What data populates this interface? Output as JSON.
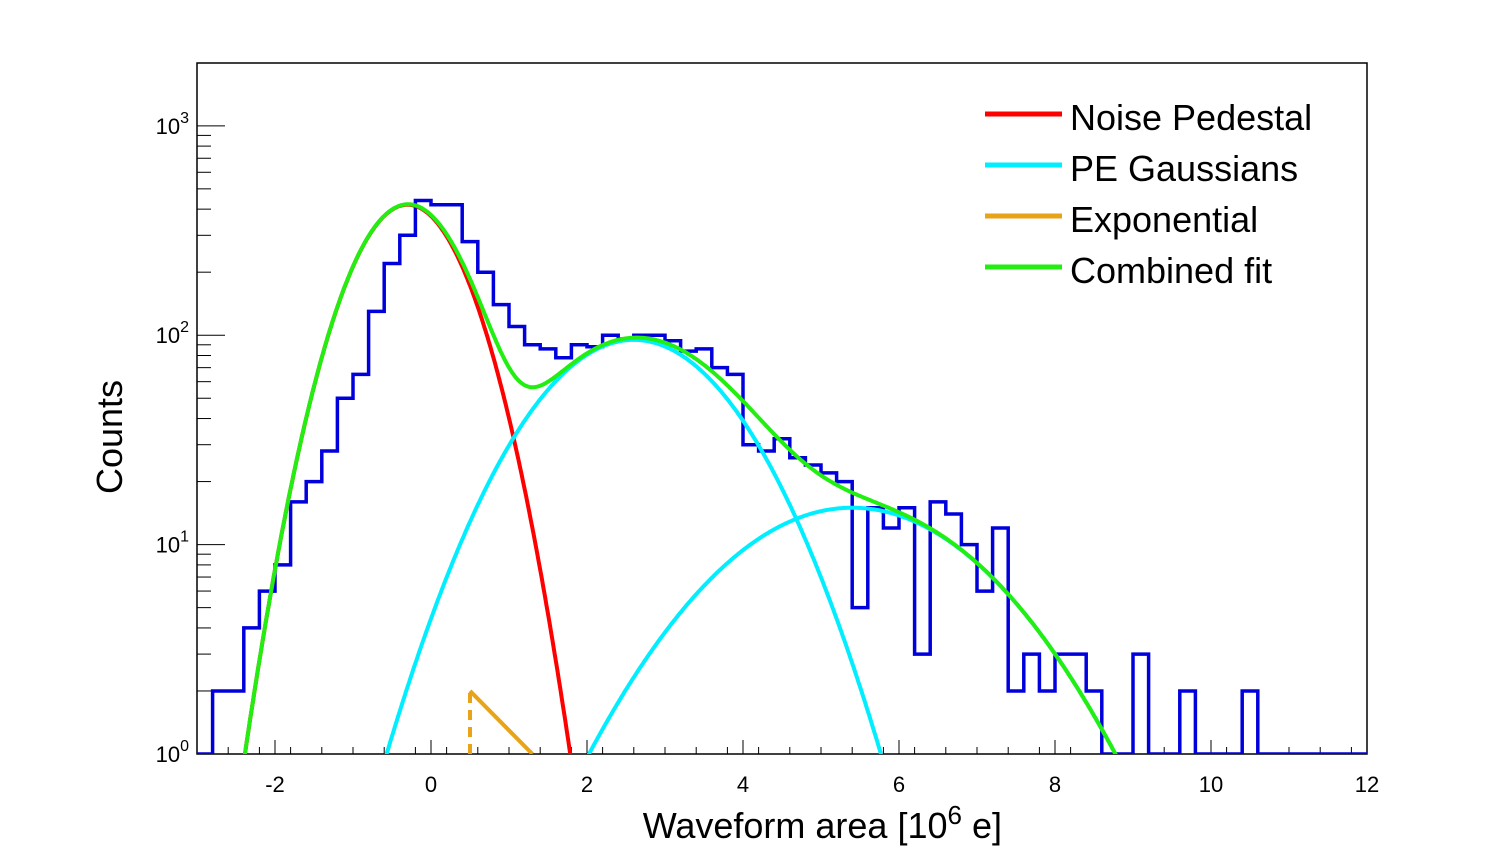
{
  "chart_data": {
    "type": "line",
    "title": "",
    "xlabel": "Waveform area [10^6 e]",
    "xlabel_parts": {
      "main": "Waveform area [10",
      "sup": "6",
      "tail": " e]"
    },
    "ylabel": "Counts",
    "xlim": [
      -3,
      12
    ],
    "ylim_log10": [
      0,
      3.3
    ],
    "y_scale": "log",
    "x_ticks": [
      -2,
      0,
      2,
      4,
      6,
      8,
      10,
      12
    ],
    "x_tick_labels": [
      "-2",
      "0",
      "2",
      "4",
      "6",
      "8",
      "10",
      "12"
    ],
    "y_ticks": [
      {
        "value": 1,
        "base": "10",
        "exp": "0"
      },
      {
        "value": 10,
        "base": "10",
        "exp": "1"
      },
      {
        "value": 100,
        "base": "10",
        "exp": "2"
      },
      {
        "value": 1000,
        "base": "10",
        "exp": "3"
      }
    ],
    "legend": {
      "placement": "top-right",
      "entries": [
        {
          "label": "Noise Pedestal",
          "color": "#ff0000"
        },
        {
          "label": "PE Gaussians",
          "color": "#00eeff"
        },
        {
          "label": "Exponential",
          "color": "#e8a317"
        },
        {
          "label": "Combined fit",
          "color": "#22ee11"
        }
      ]
    },
    "histogram": {
      "name": "Data",
      "color": "#0000dd",
      "bin_width": 0.2,
      "bins": [
        [
          -3.0,
          1
        ],
        [
          -2.8,
          2
        ],
        [
          -2.6,
          2
        ],
        [
          -2.4,
          4
        ],
        [
          -2.2,
          6
        ],
        [
          -2.0,
          8
        ],
        [
          -1.8,
          16
        ],
        [
          -1.6,
          20
        ],
        [
          -1.4,
          28
        ],
        [
          -1.2,
          50
        ],
        [
          -1.0,
          65
        ],
        [
          -0.8,
          130
        ],
        [
          -0.6,
          220
        ],
        [
          -0.4,
          300
        ],
        [
          -0.2,
          440
        ],
        [
          0.0,
          420
        ],
        [
          0.2,
          420
        ],
        [
          0.4,
          280
        ],
        [
          0.6,
          200
        ],
        [
          0.8,
          140
        ],
        [
          1.0,
          110
        ],
        [
          1.2,
          90
        ],
        [
          1.4,
          86
        ],
        [
          1.6,
          78
        ],
        [
          1.8,
          90
        ],
        [
          2.0,
          88
        ],
        [
          2.2,
          100
        ],
        [
          2.4,
          96
        ],
        [
          2.6,
          100
        ],
        [
          2.8,
          100
        ],
        [
          3.0,
          94
        ],
        [
          3.2,
          84
        ],
        [
          3.4,
          86
        ],
        [
          3.6,
          70
        ],
        [
          3.8,
          65
        ],
        [
          4.0,
          30
        ],
        [
          4.2,
          28
        ],
        [
          4.4,
          32
        ],
        [
          4.6,
          26
        ],
        [
          4.8,
          24
        ],
        [
          5.0,
          22
        ],
        [
          5.2,
          20
        ],
        [
          5.4,
          5
        ],
        [
          5.6,
          15
        ],
        [
          5.8,
          12
        ],
        [
          6.0,
          15
        ],
        [
          6.2,
          3
        ],
        [
          6.4,
          16
        ],
        [
          6.6,
          14
        ],
        [
          6.8,
          10
        ],
        [
          7.0,
          6
        ],
        [
          7.2,
          12
        ],
        [
          7.4,
          2
        ],
        [
          7.6,
          3
        ],
        [
          7.8,
          2
        ],
        [
          8.0,
          3
        ],
        [
          8.2,
          3
        ],
        [
          8.4,
          2
        ],
        [
          8.6,
          1
        ],
        [
          8.8,
          1
        ],
        [
          9.0,
          3
        ],
        [
          9.2,
          1
        ],
        [
          9.4,
          1
        ],
        [
          9.6,
          2
        ],
        [
          9.8,
          1
        ],
        [
          10.0,
          1
        ],
        [
          10.2,
          1
        ],
        [
          10.4,
          2
        ],
        [
          10.6,
          1
        ],
        [
          10.8,
          1
        ],
        [
          11.0,
          1
        ],
        [
          11.2,
          1
        ],
        [
          11.4,
          1
        ],
        [
          11.6,
          1
        ],
        [
          11.8,
          1
        ]
      ]
    },
    "fits": {
      "noise_pedestal": {
        "amplitude": 420,
        "mean": -0.3,
        "sigma": 0.6,
        "color": "#ff0000"
      },
      "pe_gaussians": [
        {
          "amplitude": 95,
          "mean": 2.6,
          "sigma": 1.05,
          "color": "#00eeff"
        },
        {
          "amplitude": 15,
          "mean": 5.4,
          "sigma": 1.45,
          "color": "#00eeff"
        }
      ],
      "exponential": {
        "x_start": 0.5,
        "y_start": 2,
        "slope_per_unit": 0.2,
        "x_end": 1.3,
        "color": "#e8a317"
      },
      "combined_fit": {
        "color": "#22ee11"
      }
    }
  }
}
